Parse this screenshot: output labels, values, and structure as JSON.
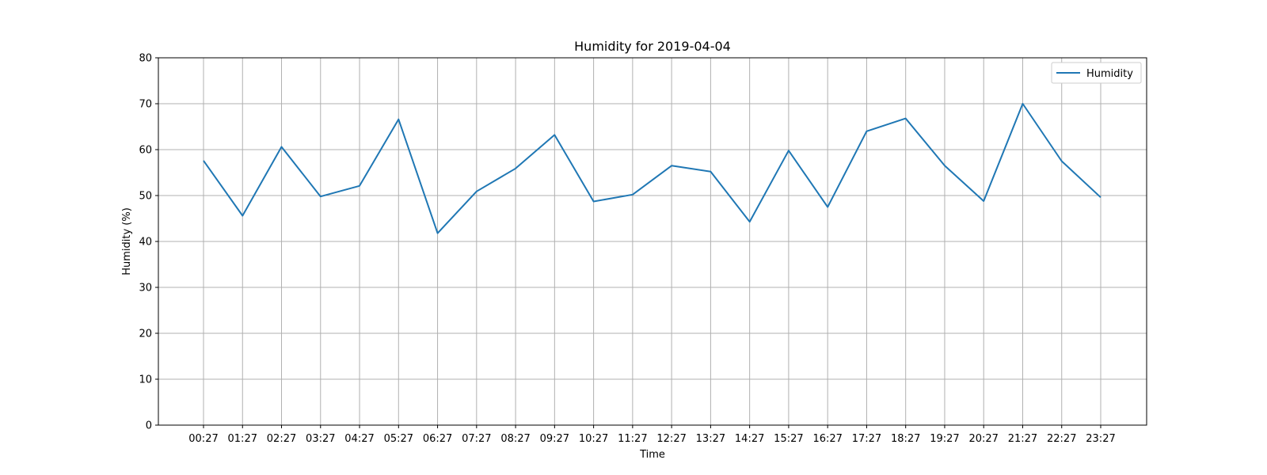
{
  "chart_data": {
    "type": "line",
    "title": "Humidity for 2019-04-04",
    "xlabel": "Time",
    "ylabel": "Humidity (%)",
    "ylim": [
      0,
      80
    ],
    "yticks": [
      0,
      10,
      20,
      30,
      40,
      50,
      60,
      70,
      80
    ],
    "grid": true,
    "legend_position": "top-right",
    "categories": [
      "00:27",
      "01:27",
      "02:27",
      "03:27",
      "04:27",
      "05:27",
      "06:27",
      "07:27",
      "08:27",
      "09:27",
      "10:27",
      "11:27",
      "12:27",
      "13:27",
      "14:27",
      "15:27",
      "16:27",
      "17:27",
      "18:27",
      "19:27",
      "20:27",
      "21:27",
      "22:27",
      "23:27"
    ],
    "series": [
      {
        "name": "Humidity",
        "color": "#1f77b4",
        "values": [
          57.6,
          45.6,
          60.6,
          49.8,
          52.1,
          66.6,
          41.8,
          50.9,
          55.9,
          63.2,
          48.7,
          50.2,
          56.5,
          55.2,
          44.3,
          59.8,
          47.5,
          64.0,
          66.8,
          56.5,
          48.8,
          70.0,
          57.5,
          49.6
        ]
      }
    ]
  }
}
